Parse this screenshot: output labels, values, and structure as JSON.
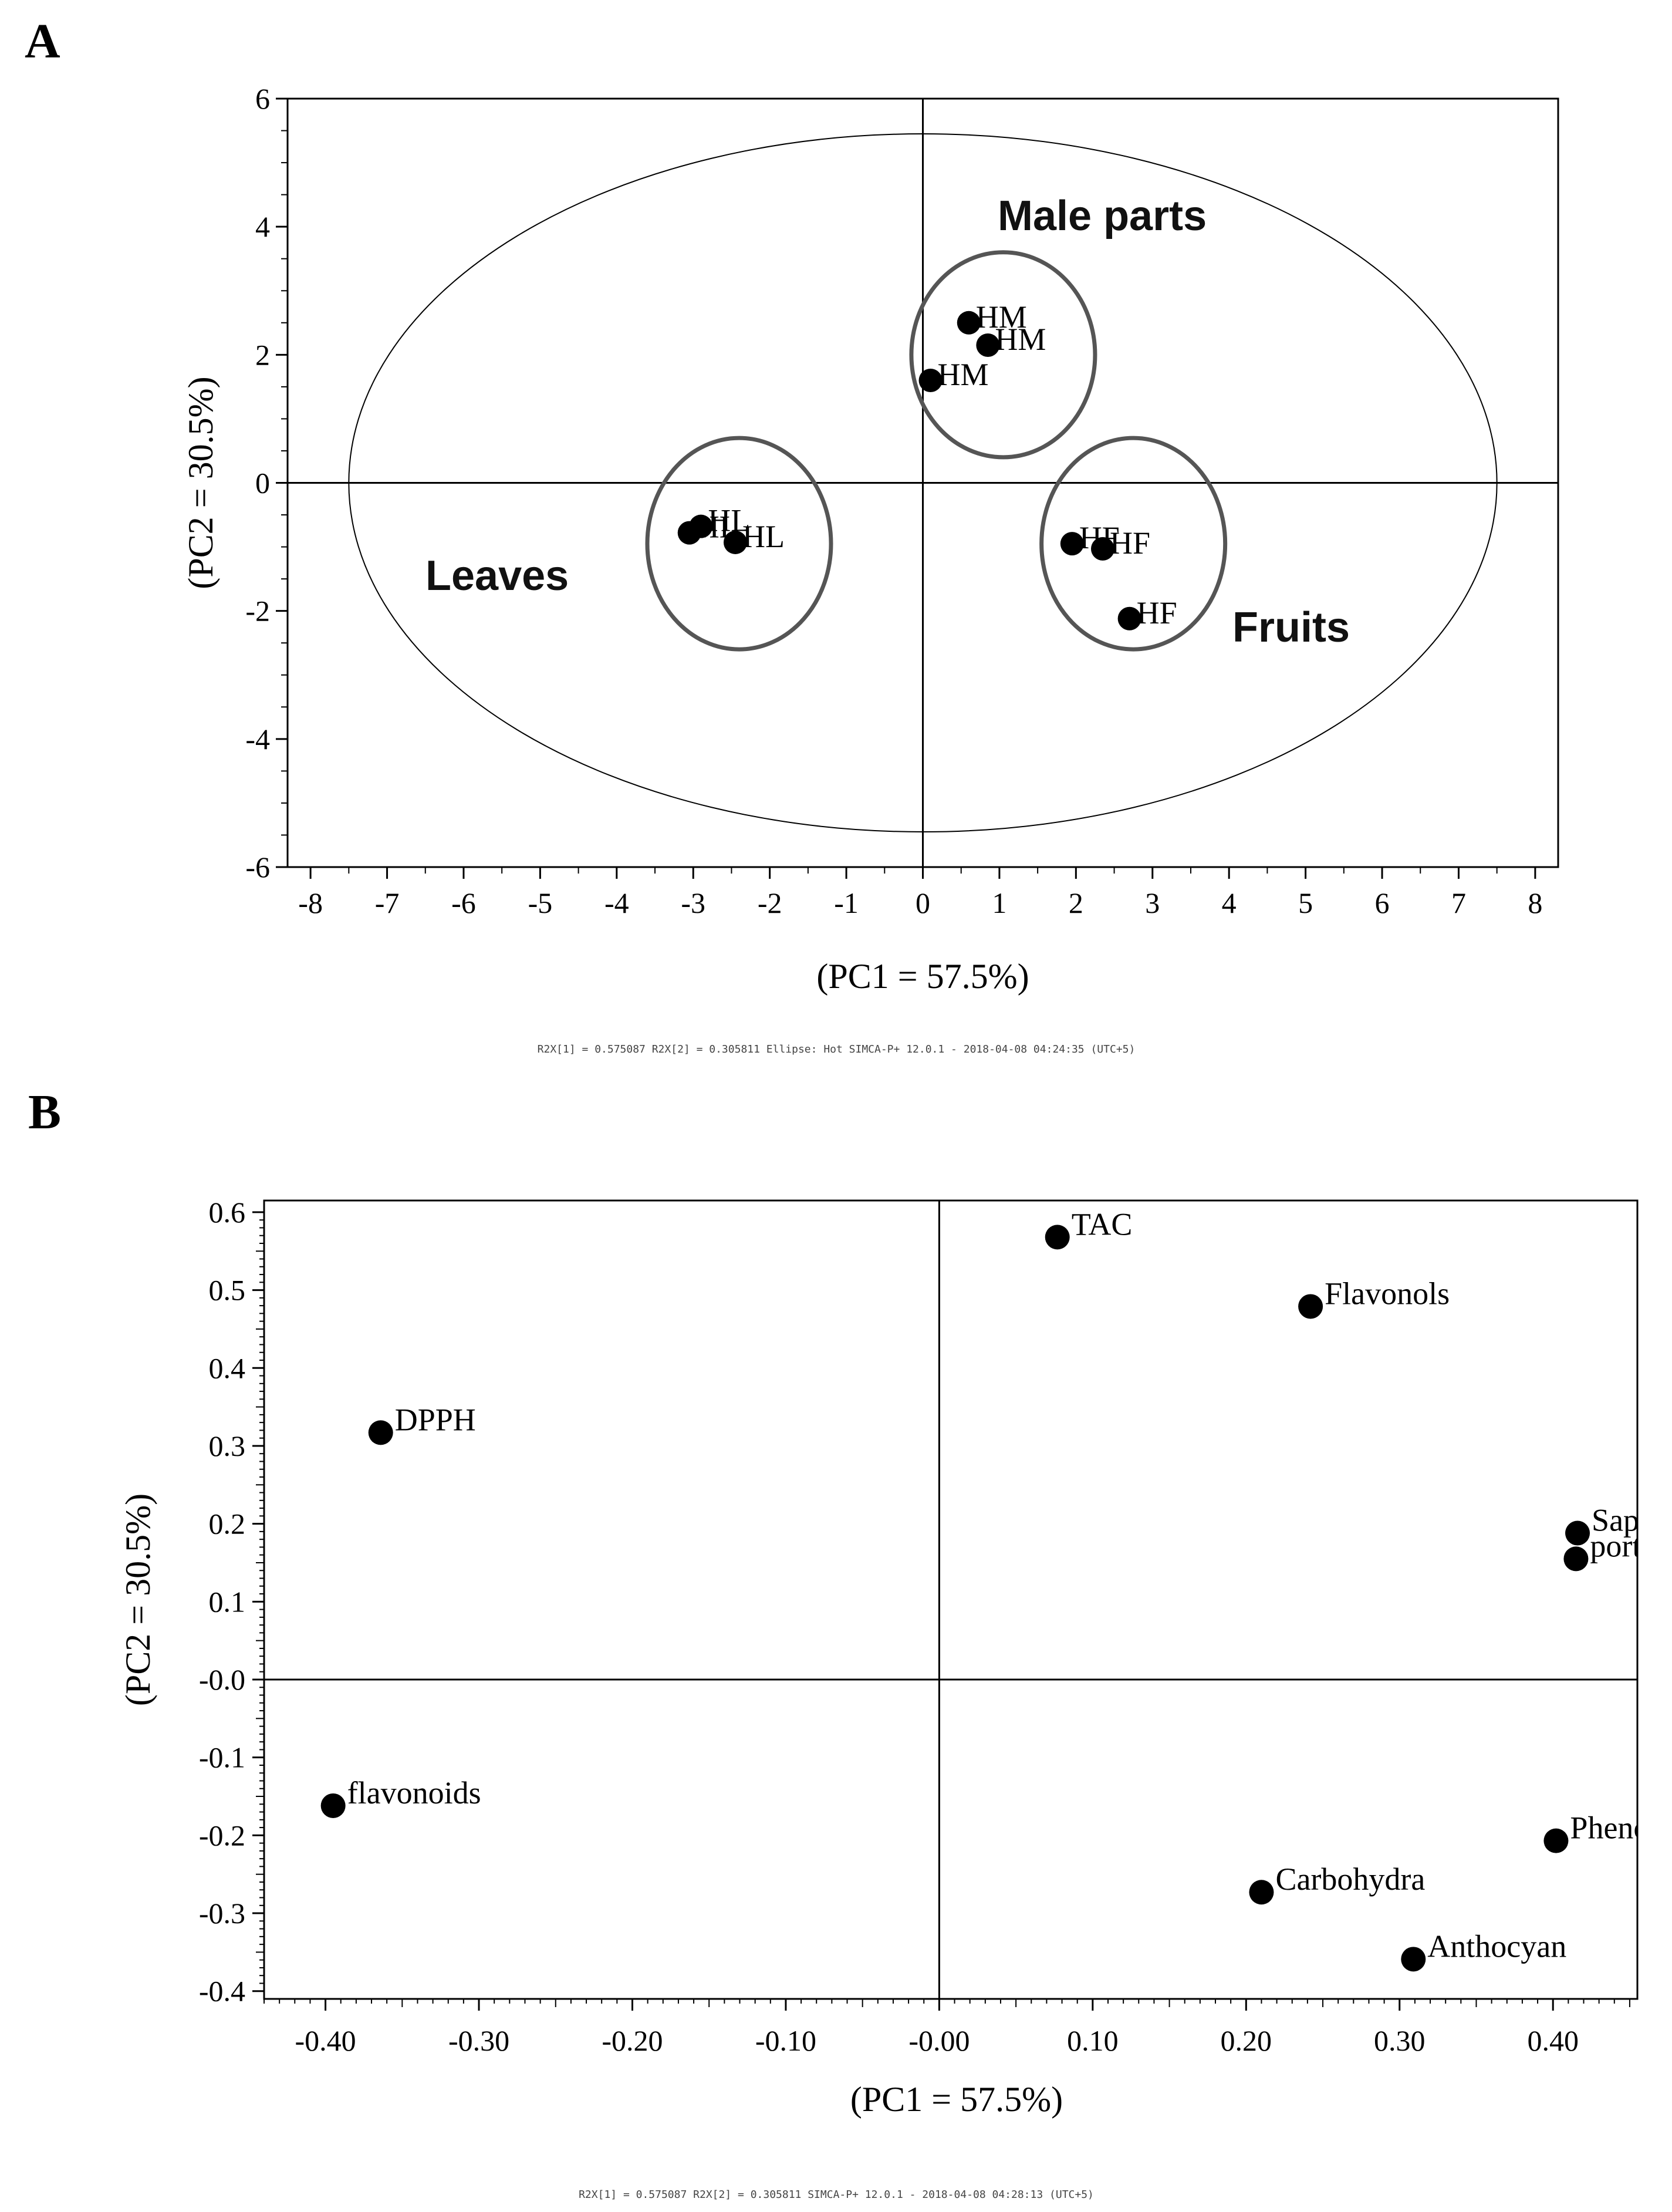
{
  "figure": {
    "panel_a_letter": "A",
    "panel_b_letter": "B"
  },
  "chart_data": [
    {
      "type": "scatter",
      "panel": "A",
      "title": "",
      "xlabel": "(PC1 = 57.5%)",
      "ylabel": "(PC2 = 30.5%)",
      "xlim": [
        -8.3,
        8.3
      ],
      "ylim": [
        -6,
        6
      ],
      "xticks": [
        "-8",
        "-7",
        "-6",
        "-5",
        "-4",
        "-3",
        "-2",
        "-1",
        "0",
        "1",
        "2",
        "3",
        "4",
        "5",
        "6",
        "7",
        "8"
      ],
      "yticks": [
        "-6",
        "-4",
        "-2",
        "0",
        "2",
        "4",
        "6"
      ],
      "grid": false,
      "zero_lines": true,
      "footer": "R2X[1] = 0.575087     R2X[2] = 0.305811   Ellipse: Hot SIMCA-P+ 12.0.1 - 2018-04-08 04:24:35 (UTC+5)",
      "points": [
        {
          "x": 0.6,
          "y": 2.5,
          "label": "HM"
        },
        {
          "x": 0.85,
          "y": 2.15,
          "label": "HM"
        },
        {
          "x": 0.1,
          "y": 1.6,
          "label": "HM"
        },
        {
          "x": -3.05,
          "y": -0.78,
          "label": "HL"
        },
        {
          "x": -2.9,
          "y": -0.68,
          "label": "HL"
        },
        {
          "x": -2.45,
          "y": -0.93,
          "label": "HL"
        },
        {
          "x": 1.95,
          "y": -0.95,
          "label": "HF"
        },
        {
          "x": 2.35,
          "y": -1.03,
          "label": "HF"
        },
        {
          "x": 2.7,
          "y": -2.12,
          "label": "HF"
        }
      ],
      "groups": [
        {
          "name": "Male parts",
          "cx": 1.05,
          "cy": 2.0,
          "rx": 1.2,
          "ry": 1.6
        },
        {
          "name": "Leaves",
          "cx": -2.4,
          "cy": -0.95,
          "rx": 1.2,
          "ry": 1.65
        },
        {
          "name": "Fruits",
          "cx": 2.75,
          "cy": -0.95,
          "rx": 1.2,
          "ry": 1.65
        }
      ],
      "hotelling_ellipse": {
        "cx": 0,
        "cy": 0,
        "rx": 7.5,
        "ry": 5.45
      }
    },
    {
      "type": "scatter",
      "panel": "B",
      "title": "",
      "xlabel": "(PC1 = 57.5%)",
      "ylabel": "(PC2 = 30.5%)",
      "xlim": [
        -0.44,
        0.455
      ],
      "ylim": [
        -0.41,
        0.615
      ],
      "xticks": [
        "-0.40",
        "-0.30",
        "-0.20",
        "-0.10",
        "-0.00",
        "0.10",
        "0.20",
        "0.30",
        "0.40"
      ],
      "yticks": [
        "0.6",
        "0.5",
        "0.4",
        "0.3",
        "0.2",
        "0.1",
        "-0.0",
        "-0.1",
        "-0.2",
        "-0.3",
        "-0.4"
      ],
      "grid": false,
      "zero_lines": true,
      "footer": "R2X[1] = 0.575087  R2X[2] = 0.305811 SIMCA-P+ 12.0.1 - 2018-04-08 04:28:13 (UTC+5)",
      "points": [
        {
          "x": 0.077,
          "y": 0.568,
          "label": "TAC"
        },
        {
          "x": 0.242,
          "y": 0.479,
          "label": "Flavonols"
        },
        {
          "x": -0.364,
          "y": 0.317,
          "label": "DPPH"
        },
        {
          "x": 0.416,
          "y": 0.188,
          "label": "Sapo"
        },
        {
          "x": 0.415,
          "y": 0.155,
          "label": "porte"
        },
        {
          "x": -0.395,
          "y": -0.162,
          "label": "flavonoids"
        },
        {
          "x": 0.402,
          "y": -0.207,
          "label": "Pheno"
        },
        {
          "x": 0.21,
          "y": -0.273,
          "label": "Carbohydra"
        },
        {
          "x": 0.309,
          "y": -0.359,
          "label": "Anthocyan"
        }
      ]
    }
  ]
}
